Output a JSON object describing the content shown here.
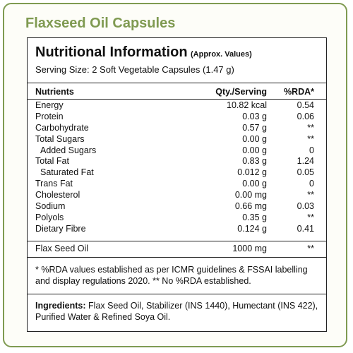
{
  "product_title": "Flaxseed Oil Capsules",
  "label": {
    "heading": "Nutritional Information",
    "heading_note": "(Approx. Values)",
    "serving_size": "Serving Size: 2 Soft Vegetable Capsules (1.47 g)",
    "columns": {
      "nutrients": "Nutrients",
      "qty": "Qty./Serving",
      "rda": "%RDA*"
    },
    "rows": [
      {
        "name": "Energy",
        "qty": "10.82 kcal",
        "rda": "0.54"
      },
      {
        "name": "Protein",
        "qty": "0.03 g",
        "rda": "0.06"
      },
      {
        "name": "Carbohydrate",
        "qty": "0.57 g",
        "rda": "**"
      },
      {
        "name": "Total Sugars",
        "qty": "0.00 g",
        "rda": "**"
      },
      {
        "name": "Added Sugars",
        "qty": "0.00 g",
        "rda": "0"
      },
      {
        "name": "Total Fat",
        "qty": "0.83 g",
        "rda": "1.24"
      },
      {
        "name": "Saturated Fat",
        "qty": "0.012 g",
        "rda": "0.05"
      },
      {
        "name": "Trans Fat",
        "qty": "0.00 g",
        "rda": "0"
      },
      {
        "name": "Cholesterol",
        "qty": "0.00 mg",
        "rda": "**"
      },
      {
        "name": "Sodium",
        "qty": "0.66 mg",
        "rda": "0.03"
      },
      {
        "name": "Polyols",
        "qty": "0.35 g",
        "rda": "**"
      },
      {
        "name": "Dietary Fibre",
        "qty": "0.124 g",
        "rda": "0.41"
      }
    ],
    "flax_row": {
      "name": "Flax Seed Oil",
      "qty": "1000 mg",
      "rda": "**"
    },
    "footnote": "* %RDA values established as per ICMR guidelines & FSSAI labelling and display regulations 2020. ** No %RDA established.",
    "ingredients_label": "Ingredients:",
    "ingredients_text": "Flax Seed Oil, Stabilizer (INS 1440), Humectant (INS 422), Purified Water & Refined Soya Oil."
  }
}
